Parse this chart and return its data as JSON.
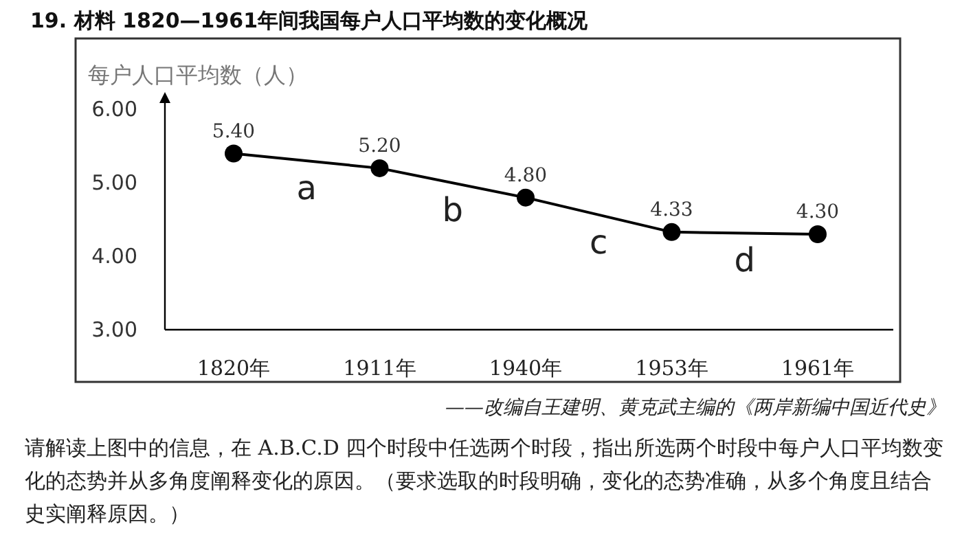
{
  "chart_data": {
    "type": "line",
    "title": "19. 材料 1820—1961年间我国每户人口平均数的变化概况",
    "ylabel": "每户人口平均数（人）",
    "categories": [
      "1820年",
      "1911年",
      "1940年",
      "1953年",
      "1961年"
    ],
    "values": [
      5.4,
      5.2,
      4.8,
      4.33,
      4.3
    ],
    "value_labels": [
      "5.40",
      "5.20",
      "4.80",
      "4.33",
      "4.30"
    ],
    "color": "#000000",
    "marker": "circle",
    "line_style": "solid",
    "ylim": [
      3,
      6.2
    ],
    "yticks": [
      {
        "value": 3,
        "label": "3.00"
      },
      {
        "value": 4,
        "label": "4.00"
      },
      {
        "value": 5,
        "label": "5.00"
      },
      {
        "value": 6,
        "label": "6.00"
      }
    ],
    "annotations": [
      "a",
      "b",
      "c",
      "d",
      "——改编自王建明、黄克武主编的《两岸新编中国近代史》",
      "请解读上图中的信息，在 A.B.C.D 四个时段中任选两个时段，指出所选两个时段中每户人口平均数变化的态势并从多角度阐释变化的原因。（要求选取的时段明确，变化的态势准确，从多个角度且结合史实阐释原因。）"
    ]
  }
}
